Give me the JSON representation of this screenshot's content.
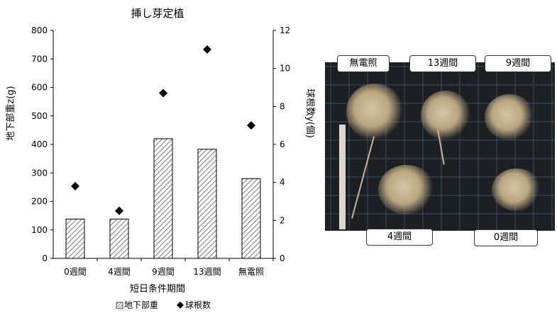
{
  "chart_data": {
    "type": "bar",
    "title": "挿し芽定植",
    "xlabel": "短日条件期間",
    "ylabel": "地下部重z(g)",
    "y2label": "球根数y(個)",
    "categories": [
      "0週間",
      "4週間",
      "9週間",
      "13週間",
      "無電照"
    ],
    "ylim": [
      0,
      800
    ],
    "y2lim": [
      0,
      12
    ],
    "yticks": [
      "0",
      "100",
      "200",
      "300",
      "400",
      "500",
      "600",
      "700",
      "800"
    ],
    "y2ticks": [
      "0",
      "2",
      "4",
      "6",
      "8",
      "10",
      "12"
    ],
    "series": [
      {
        "name": "地下部重",
        "kind": "bar",
        "axis": "left",
        "values": [
          138,
          138,
          420,
          383,
          280
        ]
      },
      {
        "name": "球根数",
        "kind": "scatter",
        "axis": "right",
        "values": [
          3.8,
          2.5,
          8.7,
          11.0,
          7.0
        ]
      }
    ],
    "legend_position": "bottom",
    "grid": false
  },
  "photo": {
    "labels": [
      "無電照",
      "13週間",
      "9週間",
      "4週間",
      "0週間"
    ]
  },
  "colors": {
    "bar_hatch": "#555555",
    "marker": "#000000",
    "photo_bg": "#1d1f23"
  }
}
